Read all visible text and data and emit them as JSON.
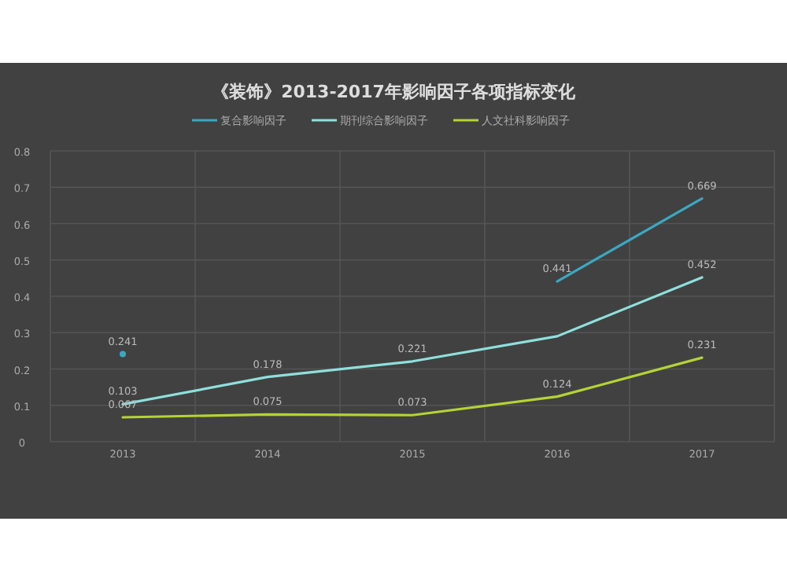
{
  "chart_data": {
    "type": "line",
    "title": "《装饰》2013-2017年影响因子各项指标变化",
    "categories": [
      "2013",
      "2014",
      "2015",
      "2016",
      "2017"
    ],
    "series": [
      {
        "name": "复合影响因子",
        "color": "#3aa8c1",
        "values": [
          0.241,
          null,
          null,
          0.441,
          0.669
        ],
        "value_labels": [
          "0.241",
          null,
          null,
          "0.441",
          "0.669"
        ]
      },
      {
        "name": "期刊综合影响因子",
        "color": "#8ee0dc",
        "values": [
          0.103,
          0.178,
          0.221,
          0.29,
          0.452
        ],
        "value_labels": [
          "0.103",
          "0.178",
          "0.221",
          null,
          "0.452"
        ]
      },
      {
        "name": "人文社科影响因子",
        "color": "#b5d334",
        "values": [
          0.067,
          0.075,
          0.073,
          0.124,
          0.231
        ],
        "value_labels": [
          "0.067",
          "0.075",
          "0.073",
          "0.124",
          "0.231"
        ]
      }
    ],
    "ylim": [
      0,
      0.8
    ],
    "yticks": [
      0,
      0.1,
      0.2,
      0.3,
      0.4,
      0.5,
      0.6,
      0.7,
      0.8
    ],
    "grid": true,
    "legend": "top",
    "marker": "none",
    "line_style": "solid"
  }
}
